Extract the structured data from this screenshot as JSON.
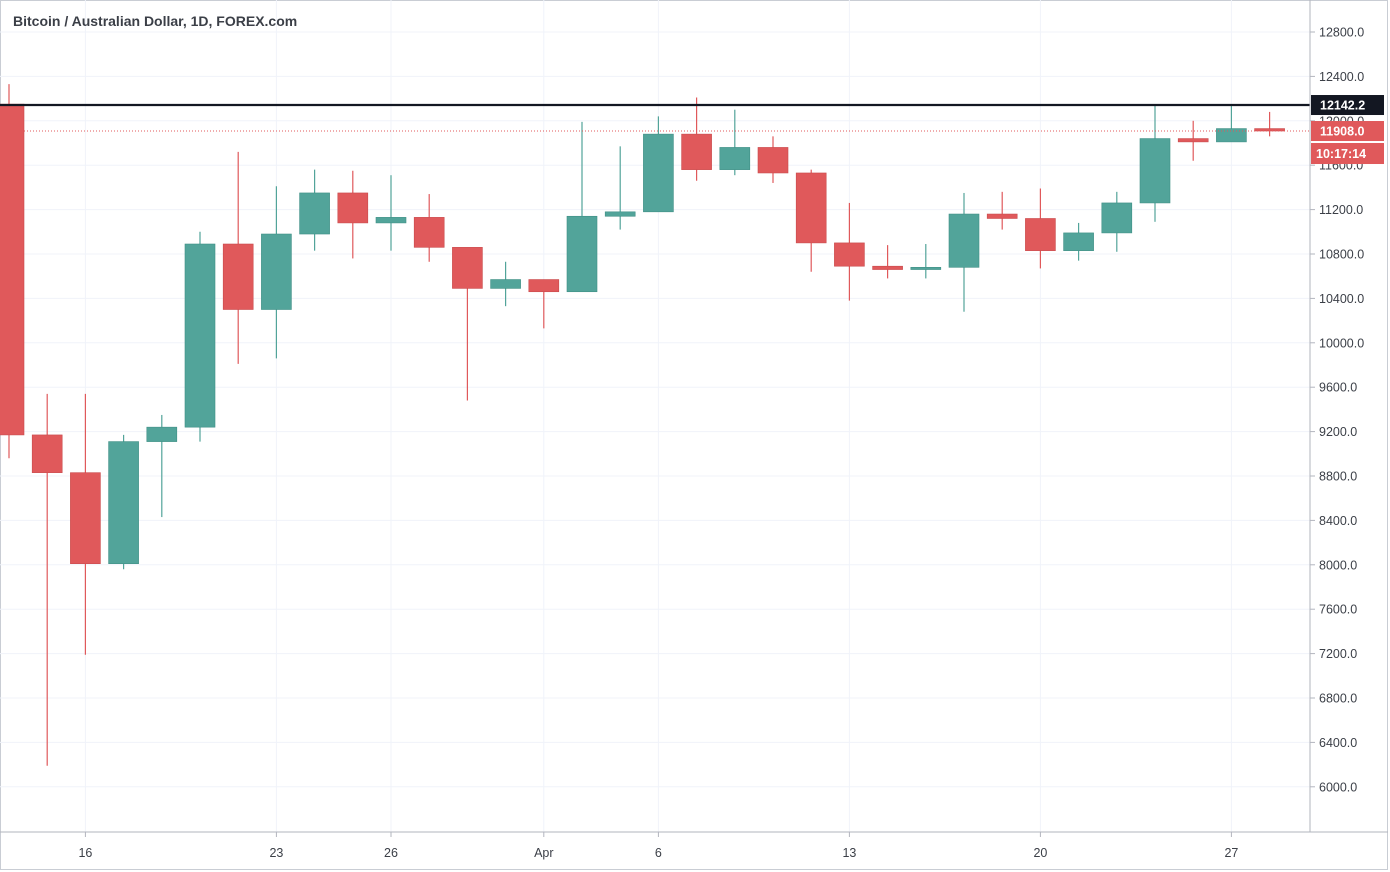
{
  "chart_data": {
    "type": "candlestick",
    "title": "Bitcoin / Australian Dollar, 1D, FOREX.com",
    "ylim": [
      5600,
      13000
    ],
    "y_ticks": [
      "12800.0",
      "12400.0",
      "12000.0",
      "11600.0",
      "11200.0",
      "10800.0",
      "10400.0",
      "10000.0",
      "9600.0",
      "9200.0",
      "8800.0",
      "8400.0",
      "8000.0",
      "7600.0",
      "7200.0",
      "6800.0",
      "6400.0",
      "6000.0"
    ],
    "x_ticks": [
      {
        "label": "16",
        "index": 2
      },
      {
        "label": "23",
        "index": 7
      },
      {
        "label": "26",
        "index": 10
      },
      {
        "label": "Apr",
        "index": 14
      },
      {
        "label": "6",
        "index": 17
      },
      {
        "label": "13",
        "index": 22
      },
      {
        "label": "20",
        "index": 27
      },
      {
        "label": "27",
        "index": 32
      }
    ],
    "candles": [
      {
        "o": 12150,
        "h": 12330,
        "l": 8960,
        "c": 9170
      },
      {
        "o": 9170,
        "h": 9540,
        "l": 6190,
        "c": 8830
      },
      {
        "o": 8830,
        "h": 9540,
        "l": 7190,
        "c": 8010
      },
      {
        "o": 8010,
        "h": 9170,
        "l": 7960,
        "c": 9110
      },
      {
        "o": 9110,
        "h": 9350,
        "l": 8430,
        "c": 9240
      },
      {
        "o": 9240,
        "h": 11000,
        "l": 9110,
        "c": 10890
      },
      {
        "o": 10890,
        "h": 11720,
        "l": 9810,
        "c": 10300
      },
      {
        "o": 10300,
        "h": 11410,
        "l": 9860,
        "c": 10980
      },
      {
        "o": 10980,
        "h": 11560,
        "l": 10830,
        "c": 11350
      },
      {
        "o": 11350,
        "h": 11550,
        "l": 10760,
        "c": 11080
      },
      {
        "o": 11080,
        "h": 11510,
        "l": 10830,
        "c": 11130
      },
      {
        "o": 11130,
        "h": 11340,
        "l": 10730,
        "c": 10860
      },
      {
        "o": 10860,
        "h": 10860,
        "l": 9480,
        "c": 10490
      },
      {
        "o": 10490,
        "h": 10730,
        "l": 10330,
        "c": 10570
      },
      {
        "o": 10570,
        "h": 10570,
        "l": 10130,
        "c": 10460
      },
      {
        "o": 10460,
        "h": 11990,
        "l": 10460,
        "c": 11140
      },
      {
        "o": 11140,
        "h": 11770,
        "l": 11020,
        "c": 11180
      },
      {
        "o": 11180,
        "h": 12040,
        "l": 11180,
        "c": 11880
      },
      {
        "o": 11880,
        "h": 12210,
        "l": 11460,
        "c": 11560
      },
      {
        "o": 11560,
        "h": 12100,
        "l": 11510,
        "c": 11760
      },
      {
        "o": 11760,
        "h": 11860,
        "l": 11440,
        "c": 11530
      },
      {
        "o": 11530,
        "h": 11560,
        "l": 10640,
        "c": 10900
      },
      {
        "o": 10900,
        "h": 11260,
        "l": 10380,
        "c": 10690
      },
      {
        "o": 10690,
        "h": 10880,
        "l": 10580,
        "c": 10660
      },
      {
        "o": 10660,
        "h": 10890,
        "l": 10580,
        "c": 10680
      },
      {
        "o": 10680,
        "h": 11350,
        "l": 10280,
        "c": 11160
      },
      {
        "o": 11160,
        "h": 11360,
        "l": 11020,
        "c": 11120
      },
      {
        "o": 11120,
        "h": 11390,
        "l": 10670,
        "c": 10830
      },
      {
        "o": 10830,
        "h": 11080,
        "l": 10740,
        "c": 10990
      },
      {
        "o": 10990,
        "h": 11360,
        "l": 10820,
        "c": 11260
      },
      {
        "o": 11260,
        "h": 12150,
        "l": 11090,
        "c": 11840
      },
      {
        "o": 11840,
        "h": 12000,
        "l": 11640,
        "c": 11810
      },
      {
        "o": 11810,
        "h": 12150,
        "l": 11810,
        "c": 11930
      },
      {
        "o": 11930,
        "h": 12080,
        "l": 11860,
        "c": 11908
      }
    ],
    "horizontal_line": {
      "value": 12142.2,
      "label": "12142.2",
      "color": "#131722"
    },
    "last_price": {
      "value": 11908.0,
      "label": "11908.0",
      "countdown": "10:17:14",
      "color": "#e0595b"
    },
    "up_color": "#52a49a",
    "down_color": "#e0595b",
    "grid": true
  }
}
